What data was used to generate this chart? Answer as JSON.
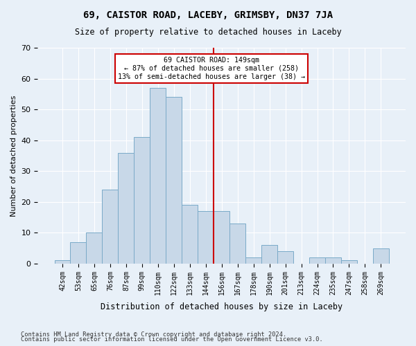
{
  "title_line1": "69, CAISTOR ROAD, LACEBY, GRIMSBY, DN37 7JA",
  "title_line2": "Size of property relative to detached houses in Laceby",
  "xlabel": "Distribution of detached houses by size in Laceby",
  "ylabel": "Number of detached properties",
  "footnote1": "Contains HM Land Registry data © Crown copyright and database right 2024.",
  "footnote2": "Contains public sector information licensed under the Open Government Licence v3.0.",
  "bar_labels": [
    "42sqm",
    "53sqm",
    "65sqm",
    "76sqm",
    "87sqm",
    "99sqm",
    "110sqm",
    "122sqm",
    "133sqm",
    "144sqm",
    "156sqm",
    "167sqm",
    "178sqm",
    "190sqm",
    "201sqm",
    "213sqm",
    "224sqm",
    "235sqm",
    "247sqm",
    "258sqm",
    "269sqm"
  ],
  "bar_heights": [
    1,
    7,
    10,
    24,
    36,
    41,
    57,
    54,
    19,
    17,
    17,
    13,
    2,
    6,
    4,
    0,
    2,
    2,
    1,
    0,
    5
  ],
  "bar_color": "#c8d8e8",
  "bar_edgecolor": "#7aaac8",
  "background_color": "#e8f0f8",
  "grid_color": "#ffffff",
  "vline_x_index": 9.5,
  "vline_color": "#cc0000",
  "annotation_text": "69 CAISTOR ROAD: 149sqm\n← 87% of detached houses are smaller (258)\n13% of semi-detached houses are larger (38) →",
  "annotation_box_color": "#ffffff",
  "annotation_box_edgecolor": "#cc0000",
  "ylim": [
    0,
    70
  ],
  "yticks": [
    0,
    10,
    20,
    30,
    40,
    50,
    60,
    70
  ]
}
